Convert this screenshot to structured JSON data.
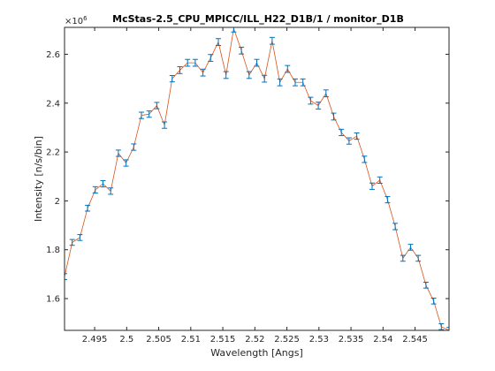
{
  "chart_data": {
    "type": "line",
    "title": "McStas-2.5_CPU_MPICC/ILL_H22_D1B/1 / monitor_D1B",
    "xlabel": "Wavelength [Angs]",
    "ylabel": "Intensity [n/s/bin]",
    "y_exponent_base": "×10",
    "y_exponent_power": "6",
    "xlim": [
      2.4903,
      2.5503
    ],
    "ylim": [
      1.47,
      2.71
    ],
    "grid": false,
    "x_ticks": [
      2.495,
      2.5,
      2.505,
      2.51,
      2.515,
      2.52,
      2.525,
      2.53,
      2.535,
      2.54,
      2.545
    ],
    "x_tick_labels": [
      "2.495",
      "2.5",
      "2.505",
      "2.51",
      "2.515",
      "2.52",
      "2.525",
      "2.53",
      "2.535",
      "2.54",
      "2.545"
    ],
    "y_ticks": [
      1.6,
      1.8,
      2.0,
      2.2,
      2.4,
      2.6
    ],
    "y_tick_labels": [
      "1.6",
      "1.8",
      "2",
      "2.2",
      "2.4",
      "2.6"
    ],
    "colors": {
      "line": "#d95319",
      "errorbar": "#0072bd",
      "axes": "#262626"
    },
    "series": [
      {
        "x": [
          2.4903,
          2.4915,
          2.4927,
          2.4939,
          2.4951,
          2.4963,
          2.4975,
          2.4987,
          2.4999,
          2.5011,
          2.5023,
          2.5035,
          2.5047,
          2.5059,
          2.5071,
          2.5083,
          2.5095,
          2.5107,
          2.5119,
          2.5131,
          2.5143,
          2.5155,
          2.5167,
          2.5179,
          2.5191,
          2.5203,
          2.5215,
          2.5227,
          2.5239,
          2.5251,
          2.5263,
          2.5275,
          2.5287,
          2.5299,
          2.5311,
          2.5323,
          2.5335,
          2.5347,
          2.5359,
          2.5371,
          2.5383,
          2.5395,
          2.5407,
          2.5419,
          2.5431,
          2.5443,
          2.5455,
          2.5467,
          2.5479,
          2.5491,
          2.5503
        ],
        "y": [
          1.69,
          1.83,
          1.85,
          1.97,
          2.045,
          2.07,
          2.04,
          2.195,
          2.155,
          2.22,
          2.35,
          2.355,
          2.39,
          2.31,
          2.5,
          2.535,
          2.565,
          2.565,
          2.525,
          2.585,
          2.65,
          2.515,
          2.705,
          2.615,
          2.515,
          2.565,
          2.5,
          2.655,
          2.485,
          2.54,
          2.485,
          2.485,
          2.41,
          2.39,
          2.44,
          2.345,
          2.28,
          2.245,
          2.265,
          2.17,
          2.06,
          2.085,
          2.005,
          1.895,
          1.765,
          1.81,
          1.765,
          1.655,
          1.59,
          1.485,
          1.47
        ],
        "err": [
          0.012,
          0.012,
          0.012,
          0.012,
          0.013,
          0.013,
          0.013,
          0.013,
          0.013,
          0.013,
          0.013,
          0.013,
          0.013,
          0.013,
          0.013,
          0.014,
          0.014,
          0.014,
          0.014,
          0.014,
          0.014,
          0.014,
          0.014,
          0.014,
          0.014,
          0.014,
          0.014,
          0.014,
          0.014,
          0.014,
          0.014,
          0.014,
          0.014,
          0.014,
          0.014,
          0.014,
          0.013,
          0.013,
          0.013,
          0.013,
          0.013,
          0.013,
          0.013,
          0.013,
          0.012,
          0.012,
          0.012,
          0.012,
          0.012,
          0.012,
          0.012
        ]
      }
    ]
  }
}
